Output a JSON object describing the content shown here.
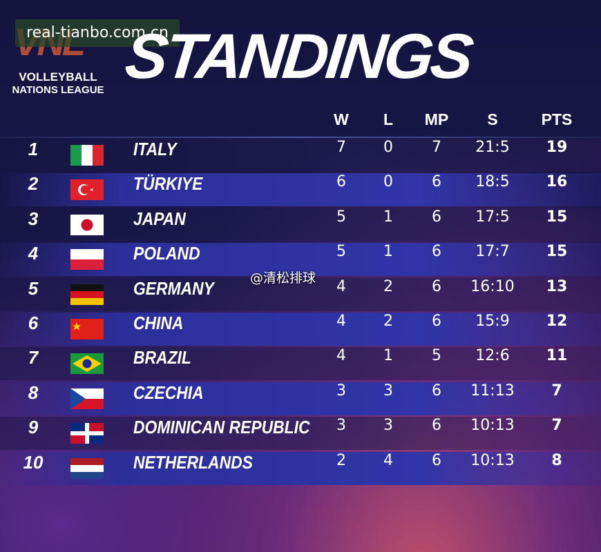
{
  "watermark": "real-tianbo.com.cn",
  "logo": {
    "mark": "VNL",
    "line1": "VOLLEYBALL",
    "line2": "NATIONS LEAGUE"
  },
  "title": "STANDINGS",
  "columns": [
    "W",
    "L",
    "MP",
    "S",
    "PTS"
  ],
  "rows": [
    {
      "rank": 1,
      "team": "ITALY",
      "w": 7,
      "l": 0,
      "mp": 7,
      "s": "21:5",
      "pts": 19
    },
    {
      "rank": 2,
      "team": "TÜRKIYE",
      "w": 6,
      "l": 0,
      "mp": 6,
      "s": "18:5",
      "pts": 16
    },
    {
      "rank": 3,
      "team": "JAPAN",
      "w": 5,
      "l": 1,
      "mp": 6,
      "s": "17:5",
      "pts": 15
    },
    {
      "rank": 4,
      "team": "POLAND",
      "w": 5,
      "l": 1,
      "mp": 6,
      "s": "17:7",
      "pts": 15
    },
    {
      "rank": 5,
      "team": "GERMANY",
      "w": 4,
      "l": 2,
      "mp": 6,
      "s": "16:10",
      "pts": 13
    },
    {
      "rank": 6,
      "team": "CHINA",
      "w": 4,
      "l": 2,
      "mp": 6,
      "s": "15:9",
      "pts": 12
    },
    {
      "rank": 7,
      "team": "BRAZIL",
      "w": 4,
      "l": 1,
      "mp": 5,
      "s": "12:6",
      "pts": 11
    },
    {
      "rank": 8,
      "team": "CZECHIA",
      "w": 3,
      "l": 3,
      "mp": 6,
      "s": "11:13",
      "pts": 7
    },
    {
      "rank": 9,
      "team": "DOMINICAN REPUBLIC",
      "w": 3,
      "l": 3,
      "mp": 6,
      "s": "10:13",
      "pts": 7
    },
    {
      "rank": 10,
      "team": "NETHERLANDS",
      "w": 2,
      "l": 4,
      "mp": 6,
      "s": "10:13",
      "pts": 8
    }
  ],
  "social_watermark": "@清松排球"
}
